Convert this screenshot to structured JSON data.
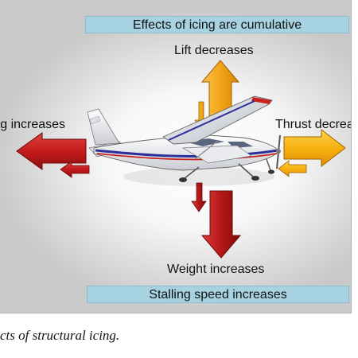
{
  "diagram": {
    "top_banner": "Effects of icing are cumulative",
    "bottom_banner": "Stalling speed increases",
    "labels": {
      "lift": "Lift decreases",
      "drag": "rag increases",
      "thrust": "Thrust decrea",
      "weight": "Weight increases"
    },
    "caption": "cts of structural icing.",
    "icons": [
      "airplane-icon",
      "arrow-up-icon",
      "arrow-down-icon",
      "arrow-left-icon",
      "arrow-right-icon"
    ],
    "colors": {
      "banner": "#a7d2e2",
      "lift_arrow": "#f2a516",
      "thrust_arrow": "#f7b10f",
      "drag_arrow": "#c41a1a",
      "weight_arrow": "#b71717",
      "plane_stripe": "#2a2f9c"
    }
  }
}
